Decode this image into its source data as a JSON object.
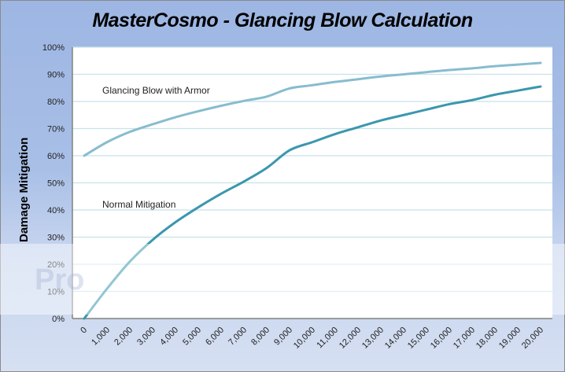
{
  "chart_data": {
    "type": "line",
    "title": "MasterCosmo - Glancing Blow Calculation",
    "xlabel": "",
    "ylabel": "Damage Mitigation",
    "x": [
      0,
      1000,
      2000,
      3000,
      4000,
      5000,
      6000,
      7000,
      8000,
      9000,
      10000,
      11000,
      12000,
      13000,
      14000,
      15000,
      16000,
      17000,
      18000,
      19000,
      20000
    ],
    "x_tick_labels": [
      "0",
      "1,000",
      "2,000",
      "3,000",
      "4,000",
      "5,000",
      "6,000",
      "7,000",
      "8,000",
      "9,000",
      "10,000",
      "11,000",
      "12,000",
      "13,000",
      "14,000",
      "15,000",
      "16,000",
      "17,000",
      "18,000",
      "19,000",
      "20,000"
    ],
    "y_tick_labels": [
      "0%",
      "10%",
      "20%",
      "30%",
      "40%",
      "50%",
      "60%",
      "70%",
      "80%",
      "90%",
      "100%"
    ],
    "ylim": [
      0,
      100
    ],
    "grid": true,
    "legend": "none (inline annotations)",
    "series": [
      {
        "name": "Glancing Blow with Armor",
        "color": "#88bccf",
        "values": [
          60,
          65,
          68.8,
          71.6,
          74.2,
          76.4,
          78.4,
          80.2,
          81.8,
          84.8,
          86,
          87.2,
          88.2,
          89.2,
          90,
          90.8,
          91.6,
          92.2,
          93,
          93.6,
          94.2
        ]
      },
      {
        "name": "Normal Mitigation",
        "color": "#3b97ad",
        "values": [
          0,
          11,
          21,
          29,
          35.5,
          41,
          46,
          50.5,
          55.5,
          62,
          65,
          68,
          70.5,
          73,
          75,
          77,
          79,
          80.5,
          82.5,
          84,
          85.5
        ]
      }
    ],
    "annotations": [
      {
        "text": "Glancing Blow with Armor",
        "x_approx": 3500,
        "y_approx": 84
      },
      {
        "text": "Normal Mitigation",
        "x_approx": 3000,
        "y_approx": 42
      }
    ]
  },
  "colors": {
    "background_top": "#9db6e3",
    "plot_background": "#ffffff",
    "gridline": "#c6e2ea"
  },
  "watermark": "Pro"
}
